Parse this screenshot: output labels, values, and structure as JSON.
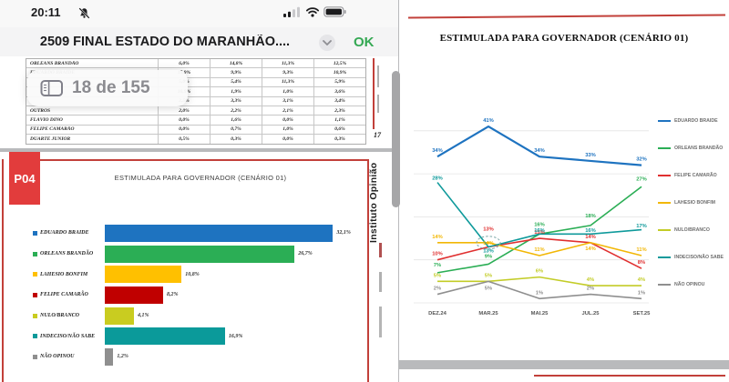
{
  "status_bar": {
    "time": "20:11"
  },
  "toolbar": {
    "title": "2509 FINAL ESTADO DO MARANHÃO....",
    "ok_label": "OK"
  },
  "page_indicator": {
    "label": "18 de 155"
  },
  "colors": {
    "accent_red": "#c2403a",
    "ok_green": "#34a853",
    "question_box_red": "#e23c3c",
    "canvas_bg": "#b9babc"
  },
  "document": {
    "page17": {
      "page_number": "17",
      "table": {
        "rows": [
          {
            "name": "ORLEANS BRANDÃO",
            "values": [
              "6,0%",
              "14,8%",
              "11,3%",
              "12,5%"
            ]
          },
          {
            "name": "EDUARDO BRAIDE",
            "values": [
              "15,9%",
              "9,9%",
              "9,3%",
              "10,9%"
            ]
          },
          {
            "name": "",
            "values": [
              "5,0%",
              "5,4%",
              "11,3%",
              "5,9%"
            ]
          },
          {
            "name": "",
            "values": [
              "10,9%",
              "1,9%",
              "1,0%",
              "3,6%"
            ]
          },
          {
            "name": "",
            "values": [
              "2,5%",
              "3,3%",
              "3,1%",
              "3,4%"
            ]
          },
          {
            "name": "OUTROS",
            "values": [
              "2,0%",
              "2,2%",
              "2,1%",
              "2,3%"
            ]
          },
          {
            "name": "FLÁVIO DINO",
            "values": [
              "0,0%",
              "1,6%",
              "0,0%",
              "1,1%"
            ]
          },
          {
            "name": "FELIPE CAMARÃO",
            "values": [
              "0,0%",
              "0,7%",
              "1,0%",
              "0,6%"
            ]
          },
          {
            "name": "DUARTE JUNIOR",
            "values": [
              "0,5%",
              "0,3%",
              "0,0%",
              "0,3%"
            ]
          }
        ]
      }
    },
    "page18": {
      "question_code": "P04",
      "side_text": "Instituto Opinião"
    }
  },
  "chart_data": [
    {
      "type": "bar",
      "orientation": "horizontal",
      "title": "ESTIMULADA PARA GOVERNADOR (CENÁRIO 01)",
      "categories": [
        "EDUARDO BRAIDE",
        "ORLEANS BRANDÃO",
        "LAHESIO BONFIM",
        "FELIPE CAMARÃO",
        "NULO/BRANCO",
        "INDECISO/NÃO SABE",
        "NÃO OPINOU"
      ],
      "values": [
        32.1,
        26.7,
        10.8,
        8.2,
        4.1,
        16.9,
        1.2
      ],
      "labels": [
        "32,1%",
        "26,7%",
        "10,8%",
        "8,2%",
        "4,1%",
        "16,9%",
        "1,2%"
      ],
      "colors": [
        "#1e73c0",
        "#2bae55",
        "#ffc000",
        "#c00000",
        "#c9cc20",
        "#0b9a9a",
        "#8f8f8f"
      ],
      "xlim": [
        0,
        35
      ]
    },
    {
      "type": "line",
      "title": "ESTIMULADA PARA GOVERNADOR (CENÁRIO 01)",
      "x": [
        "DEZ.24",
        "MAR.25",
        "MAI.25",
        "JUL.25",
        "SET.25"
      ],
      "ylim": [
        0,
        45
      ],
      "grid": true,
      "legend_position": "right",
      "series": [
        {
          "name": "EDUARDO BRAIDE",
          "color": "#1e73c0",
          "values": [
            34,
            41,
            34,
            33,
            32
          ],
          "label_dy": -5
        },
        {
          "name": "ORLEANS BRANDÃO",
          "color": "#2bae55",
          "values": [
            7,
            9,
            16,
            18,
            27
          ],
          "label_dy": [
            -7,
            -7,
            -9,
            -9,
            -7
          ]
        },
        {
          "name": "FELIPE CAMARÃO",
          "color": "#e03030",
          "values": [
            10,
            13,
            15,
            14,
            8
          ],
          "label_dy": [
            -5,
            -18,
            -5,
            -5,
            -5
          ]
        },
        {
          "name": "LAHESIO BONFIM",
          "color": "#f2b705",
          "values": [
            14,
            14,
            11,
            14,
            11
          ],
          "label_dy": [
            -5,
            2,
            -5,
            8,
            -5
          ]
        },
        {
          "name": "NULO/BRANCO",
          "color": "#c3cc27",
          "values": [
            5,
            5,
            6,
            4,
            4
          ],
          "label_dy": -5
        },
        {
          "name": "INDECISO/NÃO SABE",
          "color": "#0f9a9b",
          "values": [
            28,
            13,
            16,
            16,
            17
          ],
          "label_dy": [
            -3,
            6,
            -2.5,
            -2.5,
            -2.5
          ]
        },
        {
          "name": "NÃO OPINOU",
          "color": "#8f8f8f",
          "values": [
            2,
            5,
            1,
            2,
            1
          ],
          "label_dy": [
            -5,
            9,
            -5,
            -5,
            -5
          ]
        }
      ],
      "annotation": {
        "type": "dashed-ellipse",
        "x": "MAR.25",
        "series": "LAHESIO BONFIM",
        "value": 14
      }
    }
  ]
}
